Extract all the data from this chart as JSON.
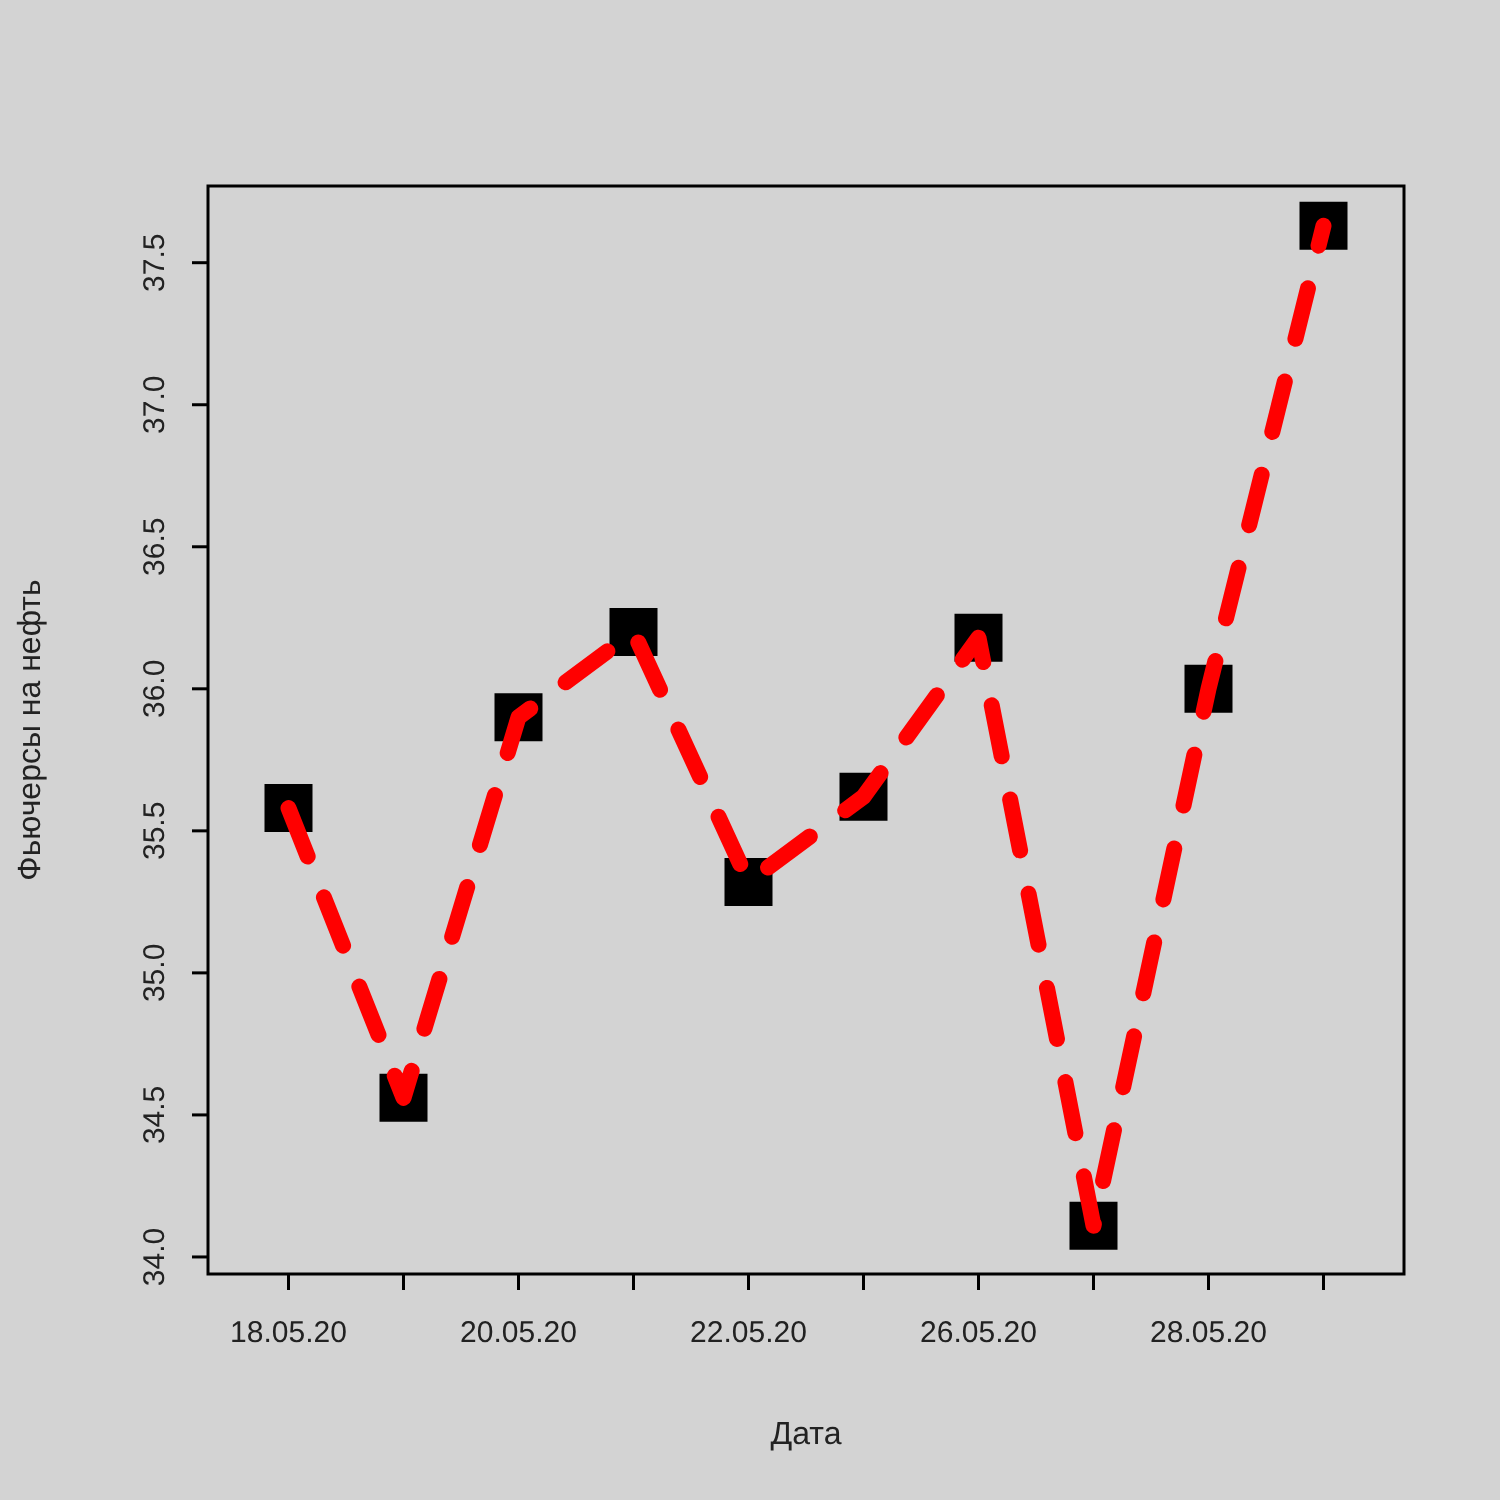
{
  "chart_data": {
    "type": "line",
    "xlabel": "Дата",
    "ylabel": "Фьючерсы на нефть",
    "categories": [
      "18.05.20",
      null,
      "20.05.20",
      null,
      "22.05.20",
      null,
      "26.05.20",
      null,
      "28.05.20",
      null
    ],
    "series": [
      {
        "type": "scatter",
        "color": "#000000",
        "values": [
          35.58,
          34.56,
          35.9,
          36.2,
          35.32,
          35.62,
          36.18,
          34.11,
          36.0,
          37.63
        ]
      },
      {
        "color": "#ff0000",
        "marker": "none",
        "values": [
          35.58,
          34.56,
          35.9,
          36.2,
          35.32,
          35.62,
          36.18,
          34.11,
          36.0,
          37.63
        ]
      }
    ],
    "ylim": [
      33.94,
      37.77
    ],
    "yticks": [
      {
        "value": 34,
        "label": "34.0"
      },
      {
        "value": 34.5,
        "label": "34.5"
      },
      {
        "value": 35,
        "label": "35.0"
      },
      {
        "value": 35.5,
        "label": "35.5"
      },
      {
        "value": 36,
        "label": "36.0"
      },
      {
        "value": 36.5,
        "label": "36.5"
      },
      {
        "value": 37,
        "label": "37.0"
      },
      {
        "value": 37.5,
        "label": "37.5"
      }
    ],
    "marker": "square",
    "line_style": "dashed"
  }
}
